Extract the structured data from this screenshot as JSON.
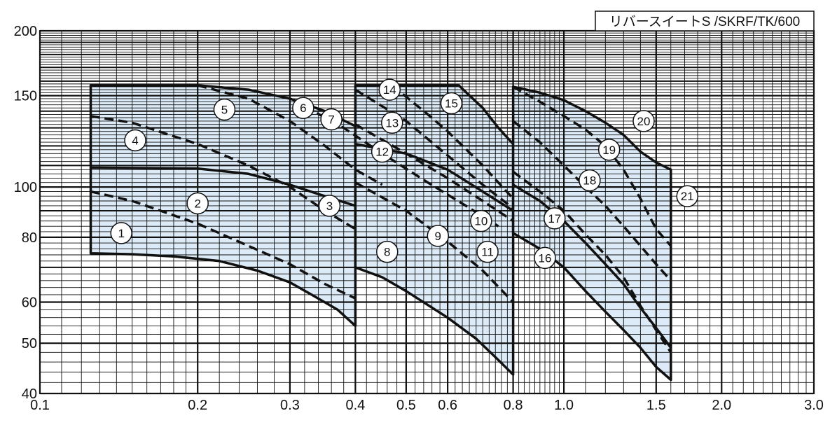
{
  "title": "リバースイートS /SKRF/TK/600",
  "chart_data": {
    "type": "line",
    "xscale": "log",
    "yscale": "log",
    "xlim": [
      0.1,
      3.0
    ],
    "ylim": [
      40,
      200
    ],
    "x_ticks": [
      0.1,
      0.2,
      0.3,
      0.4,
      0.5,
      0.6,
      0.8,
      1.0,
      1.5,
      2.0,
      3.0
    ],
    "x_tick_labels": [
      "0.1",
      "0.2",
      "0.3",
      "0.4",
      "0.5",
      "0.6",
      "0.8",
      "1.0",
      "1.5",
      "2.0",
      "3.0"
    ],
    "y_ticks": [
      40,
      50,
      60,
      80,
      100,
      150,
      200
    ],
    "y_tick_labels": [
      "40",
      "50",
      "60",
      "80",
      "100",
      "150",
      "200"
    ],
    "grid": true,
    "regions": [
      {
        "name": "region-1",
        "points": [
          [
            0.125,
            157
          ],
          [
            0.2,
            157
          ],
          [
            0.25,
            154
          ],
          [
            0.3,
            148
          ],
          [
            0.35,
            140
          ],
          [
            0.4,
            131
          ],
          [
            0.4,
            54
          ],
          [
            0.37,
            58
          ],
          [
            0.33,
            62
          ],
          [
            0.3,
            65.5
          ],
          [
            0.26,
            69
          ],
          [
            0.22,
            72
          ],
          [
            0.18,
            73.5
          ],
          [
            0.15,
            74.2
          ],
          [
            0.125,
            74.5
          ]
        ]
      },
      {
        "name": "region-2",
        "points": [
          [
            0.4,
            157
          ],
          [
            0.63,
            157
          ],
          [
            0.7,
            142
          ],
          [
            0.75,
            130
          ],
          [
            0.8,
            121
          ],
          [
            0.8,
            43.5
          ],
          [
            0.74,
            47
          ],
          [
            0.68,
            51
          ],
          [
            0.6,
            56
          ],
          [
            0.5,
            63
          ],
          [
            0.45,
            67
          ],
          [
            0.4,
            70
          ]
        ]
      },
      {
        "name": "region-3",
        "points": [
          [
            0.8,
            156
          ],
          [
            0.9,
            152
          ],
          [
            1.0,
            147
          ],
          [
            1.1,
            140
          ],
          [
            1.2,
            133
          ],
          [
            1.3,
            126
          ],
          [
            1.4,
            117
          ],
          [
            1.5,
            111.5
          ],
          [
            1.6,
            108
          ],
          [
            1.6,
            42.5
          ],
          [
            1.5,
            45
          ],
          [
            1.4,
            49
          ],
          [
            1.3,
            53
          ],
          [
            1.2,
            57.5
          ],
          [
            1.1,
            63
          ],
          [
            1.0,
            70
          ],
          [
            0.9,
            76
          ],
          [
            0.8,
            81.5
          ]
        ]
      }
    ],
    "series": [
      {
        "style": "solid",
        "points": [
          [
            0.125,
            109
          ],
          [
            0.2,
            108.5
          ],
          [
            0.25,
            106
          ],
          [
            0.3,
            101
          ],
          [
            0.35,
            96
          ],
          [
            0.4,
            92
          ]
        ]
      },
      {
        "style": "solid",
        "points": [
          [
            0.4,
            121
          ],
          [
            0.5,
            116
          ],
          [
            0.6,
            108
          ],
          [
            0.7,
            98
          ],
          [
            0.8,
            90
          ]
        ]
      },
      {
        "style": "solid",
        "points": [
          [
            0.8,
            101
          ],
          [
            0.9,
            94
          ],
          [
            1.0,
            86
          ],
          [
            1.1,
            78
          ],
          [
            1.2,
            71
          ],
          [
            1.3,
            65
          ],
          [
            1.4,
            58.5
          ],
          [
            1.5,
            53.5
          ],
          [
            1.6,
            49
          ]
        ]
      },
      {
        "style": "dashed",
        "points": [
          [
            0.125,
            137
          ],
          [
            0.15,
            133
          ],
          [
            0.2,
            121
          ],
          [
            0.25,
            110
          ],
          [
            0.3,
            100
          ],
          [
            0.35,
            90
          ],
          [
            0.4,
            83
          ]
        ]
      },
      {
        "style": "dashed",
        "points": [
          [
            0.125,
            98
          ],
          [
            0.15,
            94
          ],
          [
            0.2,
            85
          ],
          [
            0.25,
            77
          ],
          [
            0.3,
            71
          ],
          [
            0.35,
            65
          ],
          [
            0.4,
            61
          ]
        ]
      },
      {
        "style": "dashed",
        "points": [
          [
            0.2,
            157
          ],
          [
            0.25,
            148
          ],
          [
            0.3,
            134
          ],
          [
            0.35,
            120
          ],
          [
            0.4,
            108
          ],
          [
            0.45,
            101
          ]
        ]
      },
      {
        "style": "dashed",
        "points": [
          [
            0.32,
            143
          ],
          [
            0.38,
            130
          ],
          [
            0.45,
            116
          ],
          [
            0.55,
            102
          ],
          [
            0.65,
            92
          ],
          [
            0.75,
            84
          ]
        ]
      },
      {
        "style": "dashed",
        "points": [
          [
            0.4,
            132
          ],
          [
            0.5,
            116
          ],
          [
            0.6,
            104
          ],
          [
            0.7,
            94
          ],
          [
            0.8,
            86
          ]
        ]
      },
      {
        "style": "dashed",
        "points": [
          [
            0.4,
            154
          ],
          [
            0.5,
            134
          ],
          [
            0.6,
            115
          ],
          [
            0.7,
            101
          ],
          [
            0.8,
            91
          ]
        ]
      },
      {
        "style": "dashed",
        "points": [
          [
            0.4,
            102
          ],
          [
            0.5,
            90
          ],
          [
            0.6,
            78.5
          ],
          [
            0.7,
            69
          ],
          [
            0.8,
            60
          ]
        ]
      },
      {
        "style": "dashed",
        "points": [
          [
            0.47,
            157
          ],
          [
            0.55,
            138
          ],
          [
            0.6,
            128
          ],
          [
            0.7,
            110
          ],
          [
            0.8,
            95
          ]
        ]
      },
      {
        "style": "dashed",
        "points": [
          [
            0.8,
            134
          ],
          [
            0.9,
            122
          ],
          [
            1.0,
            110
          ],
          [
            1.1,
            100
          ],
          [
            1.2,
            92
          ],
          [
            1.3,
            84
          ],
          [
            1.4,
            77
          ],
          [
            1.5,
            71
          ],
          [
            1.6,
            66
          ]
        ]
      },
      {
        "style": "dashed",
        "points": [
          [
            0.8,
            107
          ],
          [
            0.9,
            98
          ],
          [
            1.0,
            90
          ],
          [
            1.1,
            81
          ],
          [
            1.2,
            74
          ],
          [
            1.3,
            67
          ],
          [
            1.4,
            59
          ],
          [
            1.5,
            53
          ],
          [
            1.6,
            48
          ]
        ]
      },
      {
        "style": "dashed",
        "points": [
          [
            0.8,
            156
          ],
          [
            0.9,
            146
          ],
          [
            1.0,
            137
          ],
          [
            1.1,
            129
          ],
          [
            1.2,
            120
          ],
          [
            1.3,
            108
          ],
          [
            1.4,
            95
          ],
          [
            1.5,
            83
          ],
          [
            1.6,
            77
          ]
        ]
      }
    ],
    "labels": [
      {
        "text": "1",
        "at": [
          0.143,
          81.5
        ]
      },
      {
        "text": "2",
        "at": [
          0.2,
          93
        ]
      },
      {
        "text": "3",
        "at": [
          0.357,
          92
        ]
      },
      {
        "text": "4",
        "at": [
          0.152,
          123
        ]
      },
      {
        "text": "5",
        "at": [
          0.225,
          141
        ]
      },
      {
        "text": "6",
        "at": [
          0.318,
          142
        ]
      },
      {
        "text": "7",
        "at": [
          0.36,
          135
        ]
      },
      {
        "text": "8",
        "at": [
          0.46,
          75
        ]
      },
      {
        "text": "9",
        "at": [
          0.575,
          80.5
        ]
      },
      {
        "text": "10",
        "at": [
          0.695,
          86
        ]
      },
      {
        "text": "11",
        "at": [
          0.715,
          75
        ]
      },
      {
        "text": "12",
        "at": [
          0.45,
          117
        ]
      },
      {
        "text": "13",
        "at": [
          0.47,
          133
        ]
      },
      {
        "text": "14",
        "at": [
          0.465,
          154
        ]
      },
      {
        "text": "15",
        "at": [
          0.61,
          145
        ]
      },
      {
        "text": "16",
        "at": [
          0.92,
          73
        ]
      },
      {
        "text": "17",
        "at": [
          0.96,
          87
        ]
      },
      {
        "text": "18",
        "at": [
          1.12,
          103
        ]
      },
      {
        "text": "19",
        "at": [
          1.22,
          118
        ]
      },
      {
        "text": "20",
        "at": [
          1.42,
          134
        ]
      },
      {
        "text": "21",
        "at": [
          1.72,
          96
        ]
      }
    ]
  }
}
